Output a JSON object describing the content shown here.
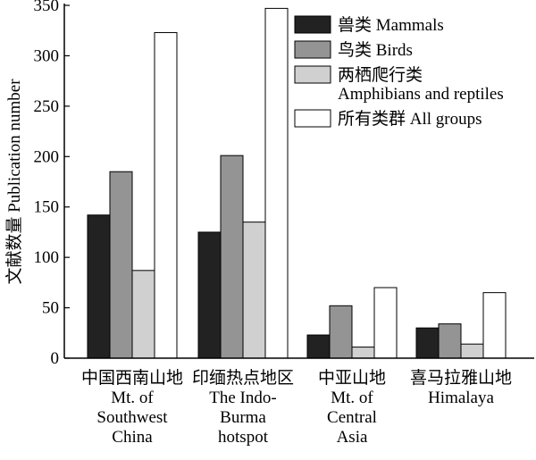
{
  "chart_data": {
    "type": "bar",
    "title": "",
    "xlabel": "",
    "ylabel": "文献数量 Publication number",
    "ylim": [
      0,
      350
    ],
    "yticks": [
      0,
      50,
      100,
      150,
      200,
      250,
      300,
      350
    ],
    "grid": false,
    "legend_position": "top-right",
    "categories": [
      [
        "中国西南山地",
        "Mt. of",
        "Southwest",
        "China"
      ],
      [
        "印缅热点地区",
        "The Indo-",
        "Burma",
        "hotspot"
      ],
      [
        "中亚山地",
        "Mt. of",
        "Central",
        "Asia"
      ],
      [
        "喜马拉雅山地",
        "Himalaya"
      ]
    ],
    "series": [
      {
        "name": [
          "兽类 Mammals"
        ],
        "color": "#222222",
        "values": [
          142,
          125,
          23,
          30
        ]
      },
      {
        "name": [
          "鸟类 Birds"
        ],
        "color": "#949494",
        "values": [
          185,
          201,
          52,
          34
        ]
      },
      {
        "name": [
          "两栖爬行类",
          "Amphibians and reptiles"
        ],
        "color": "#d0d0d0",
        "values": [
          87,
          135,
          11,
          14
        ]
      },
      {
        "name": [
          "所有类群 All groups"
        ],
        "color": "#ffffff",
        "values": [
          323,
          347,
          70,
          65
        ]
      }
    ]
  }
}
